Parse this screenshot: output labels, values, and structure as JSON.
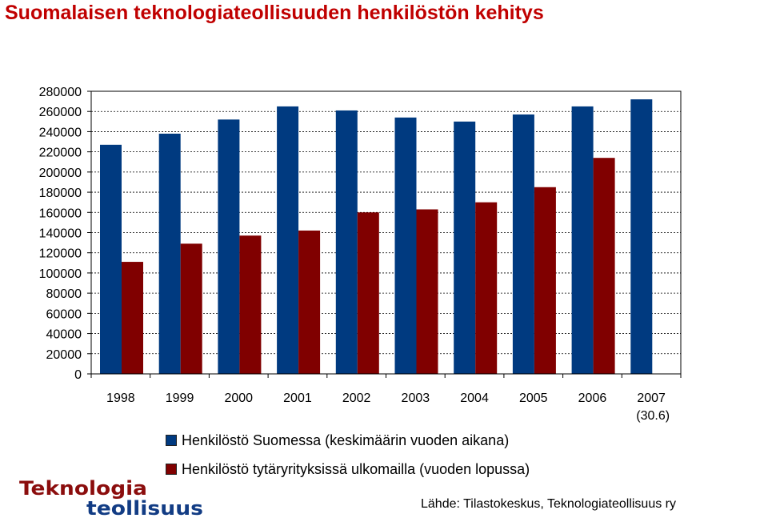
{
  "page": {
    "title": "Suomalaisen teknologiateollisuuden henkilöstön kehitys",
    "title_color": "#C00000",
    "source": "Lähde: Tilastokeskus, Teknologiateollisuus ry"
  },
  "logo": {
    "line1": "Teknologia",
    "line2": "teollisuus",
    "line1_color": "#8B0D0D",
    "line2_color": "#123C84"
  },
  "chart_data": {
    "type": "bar",
    "title": "Suomalaisen teknologiateollisuuden henkilöstön kehitys",
    "categories": [
      "1998",
      "1999",
      "2000",
      "2001",
      "2002",
      "2003",
      "2004",
      "2005",
      "2006",
      "2007"
    ],
    "category_sublabels": [
      "",
      "",
      "",
      "",
      "",
      "",
      "",
      "",
      "",
      "(30.6)"
    ],
    "series": [
      {
        "name": "Henkilöstö Suomessa (keskimäärin vuoden aikana)",
        "color": "#003A80",
        "values": [
          227000,
          238000,
          252000,
          265000,
          261000,
          254000,
          250000,
          257000,
          265000,
          272000
        ]
      },
      {
        "name": "Henkilöstö tytäryrityksissä ulkomailla (vuoden lopussa)",
        "color": "#800000",
        "values": [
          111000,
          129000,
          137000,
          142000,
          160000,
          163000,
          170000,
          185000,
          214000,
          null
        ]
      }
    ],
    "ylim": [
      0,
      280000
    ],
    "yticks": [
      "280000",
      "260000",
      "240000",
      "220000",
      "200000",
      "180000",
      "160000",
      "140000",
      "120000",
      "100000",
      "80000",
      "60000",
      "40000",
      "20000",
      "0"
    ],
    "grid": true,
    "legend_position": "bottom"
  }
}
